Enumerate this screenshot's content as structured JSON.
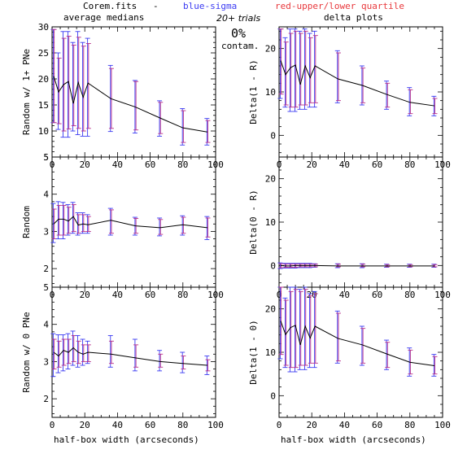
{
  "header": {
    "file": "Corem.fits",
    "dash": "-",
    "blue": "blue-sigma",
    "red": "red-upper/lower quartile",
    "blue_color": "#3a3af2",
    "red_color": "#e8383c"
  },
  "annotation": {
    "trials": "20+ trials",
    "percent": "0%",
    "contam": "contam."
  },
  "column_titles": [
    "average medians",
    "delta plots"
  ],
  "xlabel": "half-box width (arcseconds)",
  "chart_data": [
    {
      "type": "line",
      "id": "L1",
      "ylabel": "Random w/ 1+ PNe",
      "xlim": [
        0,
        100
      ],
      "ylim": [
        5,
        30
      ],
      "yticks": [
        5,
        10,
        15,
        20,
        25,
        30
      ],
      "xticks": [
        0,
        20,
        40,
        60,
        80,
        100
      ],
      "x": [
        1,
        4,
        7,
        10,
        13,
        16,
        19,
        22,
        36,
        51,
        66,
        80,
        95
      ],
      "y": [
        20.5,
        17.5,
        18.9,
        19.5,
        15.3,
        19.3,
        16.5,
        19.2,
        16.2,
        14.6,
        12.5,
        10.6,
        9.8
      ],
      "sigma": [
        [
          11.6,
          29.5
        ],
        [
          10.3,
          25.0
        ],
        [
          8.8,
          29.1
        ],
        [
          8.8,
          29.1
        ],
        [
          10.0,
          27.0
        ],
        [
          9.3,
          29.1
        ],
        [
          9.0,
          27.0
        ],
        [
          9.0,
          27.8
        ],
        [
          9.9,
          22.6
        ],
        [
          9.6,
          19.7
        ],
        [
          9.0,
          15.8
        ],
        [
          7.3,
          14.3
        ],
        [
          7.3,
          12.4
        ]
      ],
      "quartile": [
        [
          11.6,
          29.5
        ],
        [
          11.4,
          24.0
        ],
        [
          10.0,
          27.8
        ],
        [
          10.4,
          28.2
        ],
        [
          11.0,
          26.5
        ],
        [
          10.5,
          28.0
        ],
        [
          10.0,
          26.3
        ],
        [
          10.5,
          26.8
        ],
        [
          10.5,
          22.0
        ],
        [
          10.2,
          19.5
        ],
        [
          9.5,
          15.5
        ],
        [
          7.8,
          13.9
        ],
        [
          7.8,
          12.0
        ]
      ]
    },
    {
      "type": "line",
      "id": "L2",
      "ylabel": "Random",
      "xlim": [
        0,
        100
      ],
      "ylim": [
        1.5,
        5
      ],
      "yticks": [
        2,
        3,
        4,
        5
      ],
      "xticks": [
        0,
        20,
        40,
        60,
        80,
        100
      ],
      "x": [
        1,
        4,
        7,
        10,
        13,
        16,
        19,
        22,
        36,
        51,
        66,
        80,
        95
      ],
      "y": [
        3.2,
        3.33,
        3.33,
        3.28,
        3.4,
        3.17,
        3.2,
        3.18,
        3.3,
        3.15,
        3.1,
        3.18,
        3.1
      ],
      "sigma": [
        [
          2.7,
          3.75
        ],
        [
          2.8,
          3.8
        ],
        [
          2.8,
          3.78
        ],
        [
          2.9,
          3.72
        ],
        [
          2.95,
          3.78
        ],
        [
          2.9,
          3.5
        ],
        [
          2.95,
          3.5
        ],
        [
          2.95,
          3.45
        ],
        [
          2.9,
          3.62
        ],
        [
          2.9,
          3.38
        ],
        [
          2.88,
          3.36
        ],
        [
          2.9,
          3.42
        ],
        [
          2.78,
          3.4
        ]
      ],
      "quartile": [
        [
          2.8,
          3.6
        ],
        [
          2.9,
          3.7
        ],
        [
          2.9,
          3.7
        ],
        [
          2.95,
          3.65
        ],
        [
          3.0,
          3.72
        ],
        [
          2.95,
          3.45
        ],
        [
          3.0,
          3.45
        ],
        [
          3.0,
          3.4
        ],
        [
          2.95,
          3.58
        ],
        [
          2.95,
          3.35
        ],
        [
          2.92,
          3.32
        ],
        [
          2.95,
          3.38
        ],
        [
          2.85,
          3.36
        ]
      ]
    },
    {
      "type": "line",
      "id": "L3",
      "ylabel": "Random w/ 0 PNe",
      "xlim": [
        0,
        100
      ],
      "ylim": [
        1.5,
        5
      ],
      "yticks": [
        2,
        3,
        4,
        5
      ],
      "xticks": [
        0,
        20,
        40,
        60,
        80,
        100
      ],
      "x": [
        1,
        4,
        7,
        10,
        13,
        16,
        19,
        22,
        36,
        51,
        66,
        80,
        95
      ],
      "y": [
        3.25,
        3.15,
        3.3,
        3.25,
        3.37,
        3.25,
        3.2,
        3.25,
        3.2,
        3.1,
        3.0,
        2.95,
        2.9
      ],
      "sigma": [
        [
          2.6,
          3.75
        ],
        [
          2.7,
          3.72
        ],
        [
          2.75,
          3.72
        ],
        [
          2.8,
          3.75
        ],
        [
          2.9,
          3.82
        ],
        [
          2.85,
          3.7
        ],
        [
          2.9,
          3.6
        ],
        [
          2.95,
          3.55
        ],
        [
          2.85,
          3.7
        ],
        [
          2.75,
          3.6
        ],
        [
          2.75,
          3.3
        ],
        [
          2.7,
          3.25
        ],
        [
          2.65,
          3.15
        ]
      ],
      "quartile": [
        [
          2.8,
          3.6
        ],
        [
          2.85,
          3.55
        ],
        [
          2.9,
          3.6
        ],
        [
          2.95,
          3.6
        ],
        [
          3.0,
          3.7
        ],
        [
          2.95,
          3.55
        ],
        [
          3.0,
          3.45
        ],
        [
          3.0,
          3.45
        ],
        [
          2.95,
          3.55
        ],
        [
          2.85,
          3.45
        ],
        [
          2.85,
          3.2
        ],
        [
          2.8,
          3.15
        ],
        [
          2.75,
          3.05
        ]
      ]
    },
    {
      "type": "line",
      "id": "R1",
      "ylabel": "Delta(1 - R)",
      "xlim": [
        0,
        100
      ],
      "ylim": [
        -5,
        25
      ],
      "yticks": [
        0,
        10,
        20
      ],
      "xticks": [
        0,
        20,
        40,
        60,
        80,
        100
      ],
      "x": [
        1,
        4,
        7,
        10,
        13,
        16,
        19,
        22,
        36,
        51,
        66,
        80,
        95
      ],
      "y": [
        17.2,
        14.0,
        15.6,
        16.2,
        11.7,
        16.0,
        13.3,
        16.0,
        13.0,
        11.5,
        9.4,
        7.6,
        6.8
      ],
      "sigma": [
        [
          8.5,
          24.5
        ],
        [
          6.5,
          22.5
        ],
        [
          5.5,
          24.5
        ],
        [
          5.5,
          24.5
        ],
        [
          6.0,
          24.0
        ],
        [
          6.0,
          24.5
        ],
        [
          6.5,
          23.5
        ],
        [
          6.5,
          24.0
        ],
        [
          7.5,
          19.5
        ],
        [
          7.0,
          16.0
        ],
        [
          6.0,
          12.5
        ],
        [
          4.5,
          11.0
        ],
        [
          4.5,
          9.0
        ]
      ],
      "quartile": [
        [
          9.5,
          24.5
        ],
        [
          7.0,
          21.5
        ],
        [
          6.5,
          23.5
        ],
        [
          6.5,
          24.0
        ],
        [
          7.0,
          23.5
        ],
        [
          7.0,
          24.0
        ],
        [
          7.5,
          22.5
        ],
        [
          7.5,
          23.0
        ],
        [
          8.0,
          19.0
        ],
        [
          7.5,
          15.5
        ],
        [
          6.5,
          12.0
        ],
        [
          5.0,
          10.5
        ],
        [
          5.0,
          8.5
        ]
      ]
    },
    {
      "type": "line",
      "id": "R2",
      "ylabel": "Delta(0 - R)",
      "xlim": [
        0,
        100
      ],
      "ylim": [
        -5,
        25
      ],
      "yticks": [
        0,
        10,
        20
      ],
      "xticks": [
        0,
        20,
        40,
        60,
        80,
        100
      ],
      "x": [
        1,
        4,
        7,
        10,
        13,
        16,
        19,
        22,
        36,
        51,
        66,
        80,
        95
      ],
      "y": [
        0.0,
        -0.1,
        -0.1,
        0.0,
        0.0,
        0.0,
        0.0,
        0.0,
        -0.1,
        -0.1,
        -0.1,
        -0.1,
        -0.1
      ],
      "sigma": [
        [
          -0.7,
          0.6
        ],
        [
          -0.6,
          0.5
        ],
        [
          -0.6,
          0.5
        ],
        [
          -0.6,
          0.5
        ],
        [
          -0.5,
          0.5
        ],
        [
          -0.5,
          0.5
        ],
        [
          -0.5,
          0.5
        ],
        [
          -0.4,
          0.4
        ],
        [
          -0.5,
          0.4
        ],
        [
          -0.5,
          0.4
        ],
        [
          -0.4,
          0.3
        ],
        [
          -0.4,
          0.3
        ],
        [
          -0.4,
          0.3
        ]
      ],
      "quartile": [
        [
          -0.5,
          0.4
        ],
        [
          -0.4,
          0.3
        ],
        [
          -0.4,
          0.3
        ],
        [
          -0.4,
          0.3
        ],
        [
          -0.3,
          0.3
        ],
        [
          -0.3,
          0.3
        ],
        [
          -0.3,
          0.3
        ],
        [
          -0.3,
          0.3
        ],
        [
          -0.3,
          0.3
        ],
        [
          -0.3,
          0.3
        ],
        [
          -0.3,
          0.2
        ],
        [
          -0.3,
          0.2
        ],
        [
          -0.3,
          0.2
        ]
      ]
    },
    {
      "type": "line",
      "id": "R3",
      "ylabel": "Delta(1 - 0)",
      "xlim": [
        0,
        100
      ],
      "ylim": [
        -5,
        25
      ],
      "yticks": [
        0,
        10,
        20
      ],
      "xticks": [
        0,
        20,
        40,
        60,
        80,
        100
      ],
      "x": [
        1,
        4,
        7,
        10,
        13,
        16,
        19,
        22,
        36,
        51,
        66,
        80,
        95
      ],
      "y": [
        17.2,
        14.1,
        15.7,
        16.2,
        11.7,
        16.0,
        13.3,
        16.0,
        13.2,
        11.7,
        9.6,
        7.7,
        6.9
      ],
      "sigma": [
        [
          8.5,
          25.0
        ],
        [
          6.5,
          22.5
        ],
        [
          5.5,
          25.0
        ],
        [
          5.5,
          25.0
        ],
        [
          6.0,
          24.5
        ],
        [
          6.0,
          25.0
        ],
        [
          6.5,
          23.5
        ],
        [
          6.5,
          24.0
        ],
        [
          7.5,
          19.5
        ],
        [
          7.0,
          16.0
        ],
        [
          6.0,
          12.8
        ],
        [
          4.5,
          11.0
        ],
        [
          4.5,
          9.5
        ]
      ],
      "quartile": [
        [
          9.5,
          25.0
        ],
        [
          7.0,
          22.0
        ],
        [
          6.5,
          24.0
        ],
        [
          6.5,
          24.5
        ],
        [
          7.0,
          24.0
        ],
        [
          7.0,
          24.5
        ],
        [
          7.5,
          23.0
        ],
        [
          7.5,
          23.5
        ],
        [
          8.0,
          19.0
        ],
        [
          7.5,
          15.5
        ],
        [
          6.5,
          12.3
        ],
        [
          5.0,
          10.5
        ],
        [
          5.0,
          9.0
        ]
      ]
    }
  ]
}
